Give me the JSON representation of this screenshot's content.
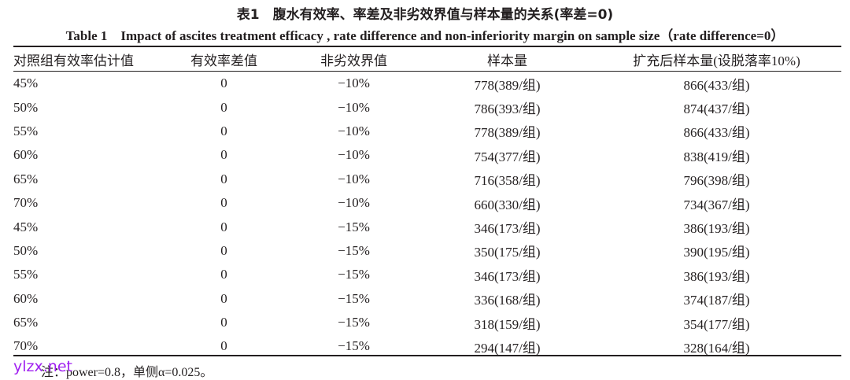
{
  "title_cn": "表1　腹水有效率、率差及非劣效界值与样本量的关系(率差=0)",
  "title_en": "Table 1　Impact of ascites treatment efficacy , rate difference and non-inferiority margin on sample size（rate difference=0）",
  "headers": [
    "对照组有效率估计值",
    "有效率差值",
    "非劣效界值",
    "样本量",
    "扩充后样本量(设脱落率10%)"
  ],
  "rows": [
    [
      "45%",
      "0",
      "−10%",
      "778(389/组)",
      "866(433/组)"
    ],
    [
      "50%",
      "0",
      "−10%",
      "786(393/组)",
      "874(437/组)"
    ],
    [
      "55%",
      "0",
      "−10%",
      "778(389/组)",
      "866(433/组)"
    ],
    [
      "60%",
      "0",
      "−10%",
      "754(377/组)",
      "838(419/组)"
    ],
    [
      "65%",
      "0",
      "−10%",
      "716(358/组)",
      "796(398/组)"
    ],
    [
      "70%",
      "0",
      "−10%",
      "660(330/组)",
      "734(367/组)"
    ],
    [
      "45%",
      "0",
      "−15%",
      "346(173/组)",
      "386(193/组)"
    ],
    [
      "50%",
      "0",
      "−15%",
      "350(175/组)",
      "390(195/组)"
    ],
    [
      "55%",
      "0",
      "−15%",
      "346(173/组)",
      "386(193/组)"
    ],
    [
      "60%",
      "0",
      "−15%",
      "336(168/组)",
      "374(187/组)"
    ],
    [
      "65%",
      "0",
      "−15%",
      "318(159/组)",
      "354(177/组)"
    ],
    [
      "70%",
      "0",
      "−15%",
      "294(147/组)",
      "328(164/组)"
    ]
  ],
  "note": "注：power=0.8，单侧α=0.025。",
  "watermark": "ylzx.net"
}
